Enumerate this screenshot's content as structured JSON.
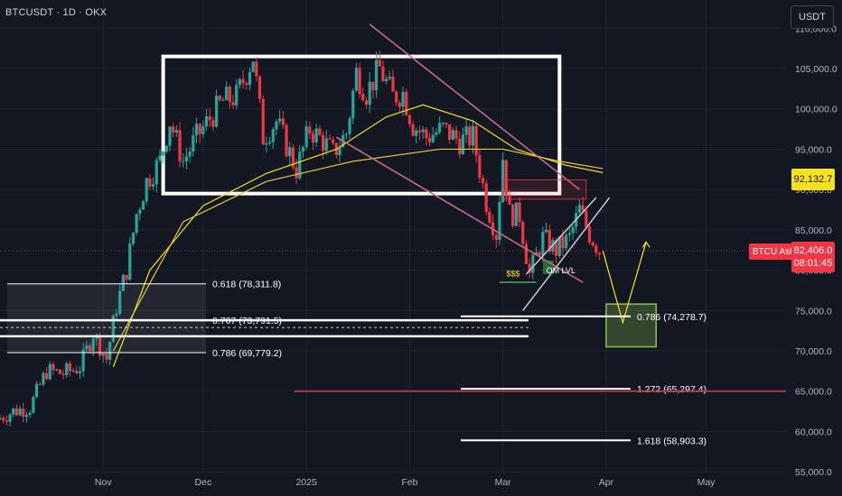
{
  "header": {
    "title": "BTCUSDT · 1D · OKX",
    "currency": "USDT"
  },
  "price_tags": {
    "current": "92,132.7",
    "ask_label": "BTCU Ask",
    "ask_price": "82,406.0",
    "ask_timer": "08:01:45"
  },
  "annotations": {
    "om_level": "OM LVL",
    "sss": "$$$"
  },
  "fib_levels": [
    {
      "label": "0.618 (78,311.8)",
      "value": 78311.8
    },
    {
      "label": "0.707 (73,791.5)",
      "value": 73791.5
    },
    {
      "label": "0.786 (69,779.2)",
      "value": 69779.2
    },
    {
      "label": "0.786 (74,278.7)",
      "value": 74278.7
    },
    {
      "label": "1.272 (65,297.4)",
      "value": 65297.4
    },
    {
      "label": "1.618 (58,903.3)",
      "value": 58903.3
    }
  ],
  "colors": {
    "background": "#131722",
    "up": "#26a69a",
    "down": "#f23645",
    "ma_fast": "#f5e21f",
    "ma_slow": "#e8c547",
    "channel": "#c76a8c",
    "target_box": "#8bc34a"
  },
  "chart_data": {
    "type": "candlestick",
    "title": "BTCUSDT · 1D · OKX",
    "xlabel": "",
    "ylabel": "",
    "x_ticks": [
      "Nov",
      "Dec",
      "2025",
      "Feb",
      "Mar",
      "Apr",
      "May"
    ],
    "y_ticks": [
      "110,000.0",
      "105,000.0",
      "100,000.0",
      "95,000.0",
      "90,000.0",
      "85,000.0",
      "80,000.0",
      "75,000.0",
      "70,000.0",
      "65,000.0",
      "60,000.0",
      "55,000.0"
    ],
    "ylim": [
      52000,
      113500
    ],
    "xlim": [
      "2024-10-01",
      "2025-05-25"
    ],
    "series": [
      {
        "type": "candles",
        "values": [
          {
            "date": "2024-10-01",
            "value": 61500
          },
          {
            "date": "2024-10-06",
            "value": 62500
          },
          {
            "date": "2024-10-11",
            "value": 63000
          },
          {
            "date": "2024-10-16",
            "value": 67500
          },
          {
            "date": "2024-10-21",
            "value": 67200
          },
          {
            "date": "2024-10-26",
            "value": 68000
          },
          {
            "date": "2024-10-30",
            "value": 72200
          },
          {
            "date": "2024-11-03",
            "value": 69000
          },
          {
            "date": "2024-11-06",
            "value": 75500
          },
          {
            "date": "2024-11-09",
            "value": 80000
          },
          {
            "date": "2024-11-12",
            "value": 87000
          },
          {
            "date": "2024-11-15",
            "value": 91000
          },
          {
            "date": "2024-11-19",
            "value": 93500
          },
          {
            "date": "2024-11-22",
            "value": 98500
          },
          {
            "date": "2024-11-26",
            "value": 93500
          },
          {
            "date": "2024-11-30",
            "value": 96500
          },
          {
            "date": "2024-12-04",
            "value": 98800
          },
          {
            "date": "2024-12-08",
            "value": 101000
          },
          {
            "date": "2024-12-12",
            "value": 101500
          },
          {
            "date": "2024-12-17",
            "value": 106500
          },
          {
            "date": "2024-12-20",
            "value": 96500
          },
          {
            "date": "2024-12-24",
            "value": 98500
          },
          {
            "date": "2024-12-30",
            "value": 92500
          },
          {
            "date": "2025-01-03",
            "value": 97500
          },
          {
            "date": "2025-01-07",
            "value": 96000
          },
          {
            "date": "2025-01-10",
            "value": 94500
          },
          {
            "date": "2025-01-14",
            "value": 97000
          },
          {
            "date": "2025-01-17",
            "value": 104500
          },
          {
            "date": "2025-01-20",
            "value": 102000
          },
          {
            "date": "2025-01-24",
            "value": 105000
          },
          {
            "date": "2025-01-28",
            "value": 101500
          },
          {
            "date": "2025-01-31",
            "value": 102000
          },
          {
            "date": "2025-02-03",
            "value": 98000
          },
          {
            "date": "2025-02-07",
            "value": 96500
          },
          {
            "date": "2025-02-12",
            "value": 97500
          },
          {
            "date": "2025-02-17",
            "value": 96000
          },
          {
            "date": "2025-02-21",
            "value": 96500
          },
          {
            "date": "2025-02-25",
            "value": 88500
          },
          {
            "date": "2025-02-28",
            "value": 84500
          },
          {
            "date": "2025-03-02",
            "value": 94000
          },
          {
            "date": "2025-03-04",
            "value": 87000
          },
          {
            "date": "2025-03-07",
            "value": 86800
          },
          {
            "date": "2025-03-10",
            "value": 79500
          },
          {
            "date": "2025-03-14",
            "value": 84000
          },
          {
            "date": "2025-03-18",
            "value": 82500
          },
          {
            "date": "2025-03-22",
            "value": 84000
          },
          {
            "date": "2025-03-25",
            "value": 87500
          },
          {
            "date": "2025-03-28",
            "value": 84500
          },
          {
            "date": "2025-03-31",
            "value": 82406
          }
        ]
      },
      {
        "type": "projection",
        "values": [
          {
            "date": "2025-03-31",
            "value": 82406
          },
          {
            "date": "2025-04-06",
            "value": 73500
          },
          {
            "date": "2025-04-13",
            "value": 83500
          }
        ]
      }
    ]
  }
}
